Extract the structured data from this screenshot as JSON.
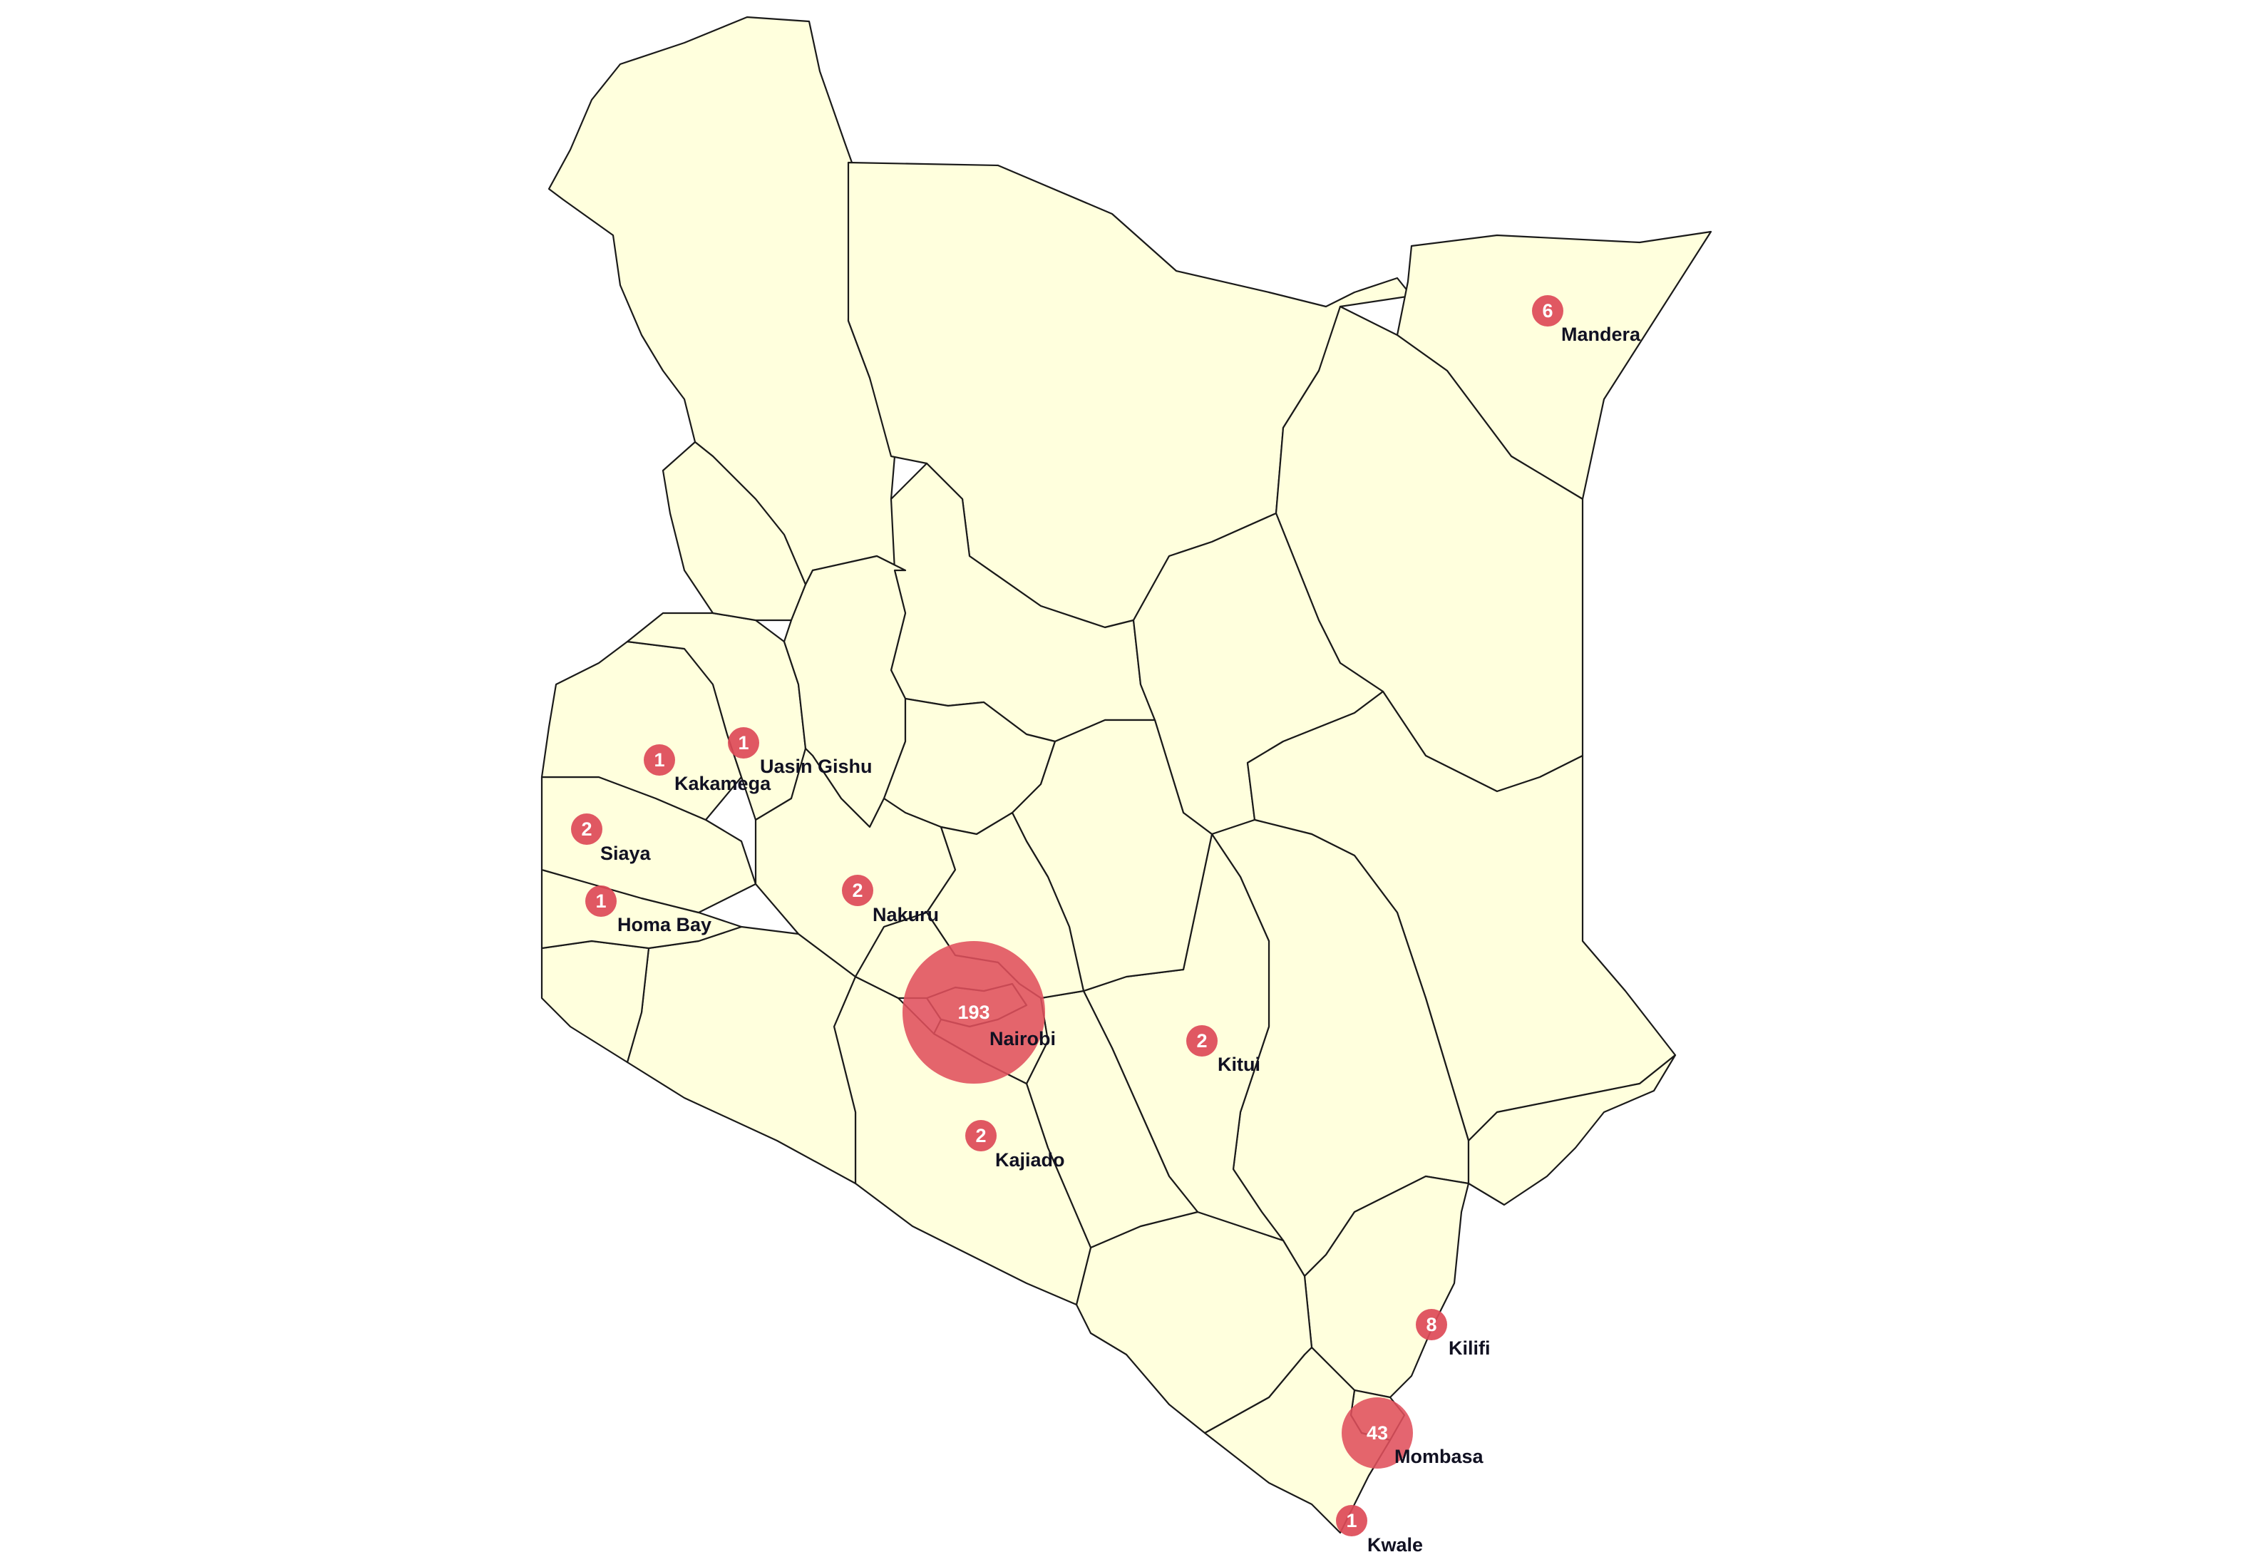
{
  "map": {
    "background": "#ffffff",
    "region_fill": "#ffffdd",
    "border_color": "#1a1a1a",
    "bubble_color": "#dd4a57"
  },
  "markers": [
    {
      "county": "Mandera",
      "count": "6"
    },
    {
      "county": "Uasin Gishu",
      "count": "1"
    },
    {
      "county": "Kakamega",
      "count": "1"
    },
    {
      "county": "Siaya",
      "count": "2"
    },
    {
      "county": "Homa Bay",
      "count": "1"
    },
    {
      "county": "Nakuru",
      "count": "2"
    },
    {
      "county": "Nairobi",
      "count": "193"
    },
    {
      "county": "Kitui",
      "count": "2"
    },
    {
      "county": "Kajiado",
      "count": "2"
    },
    {
      "county": "Kilifi",
      "count": "8"
    },
    {
      "county": "Mombasa",
      "count": "43"
    },
    {
      "county": "Kwale",
      "count": "1"
    }
  ]
}
